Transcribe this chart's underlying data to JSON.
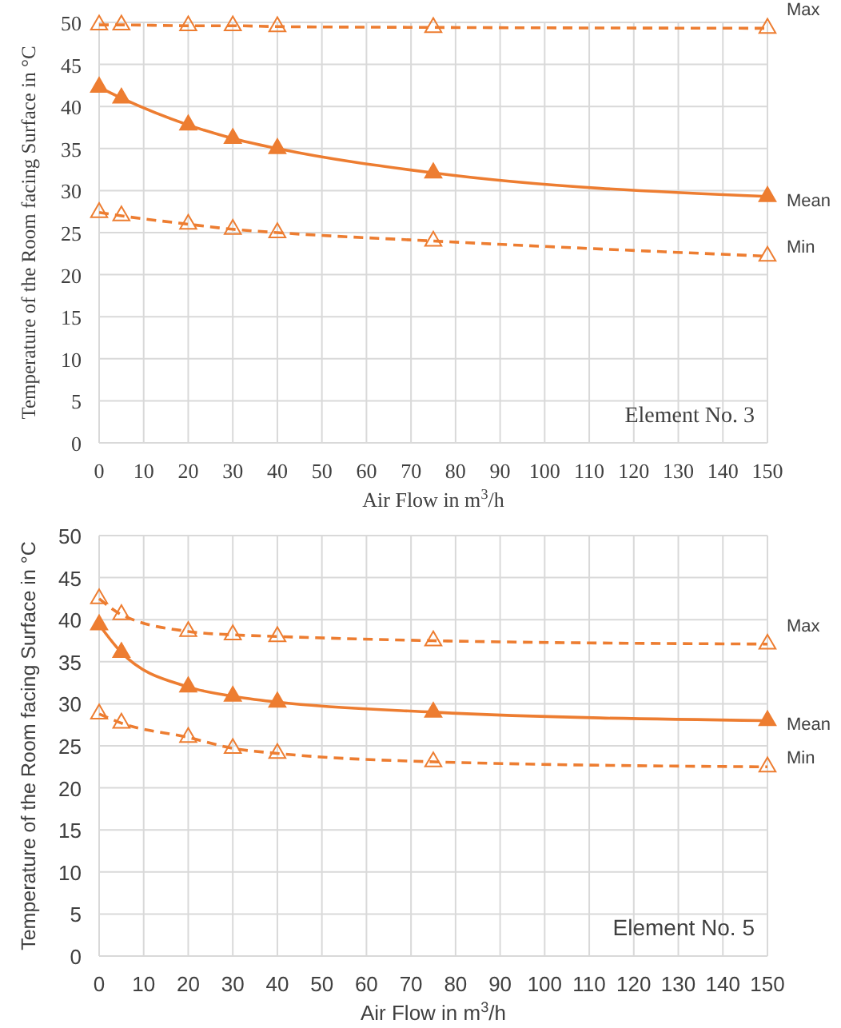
{
  "chart_data": [
    {
      "type": "line",
      "xlabel": "Air Flow in m$^{3}$/h",
      "ylabel": "Temperature of the Room facing Surface in °C",
      "annotations": [
        "Element No. 3"
      ],
      "x": [
        0,
        5,
        20,
        30,
        40,
        75,
        150
      ],
      "xlim": [
        0,
        150
      ],
      "xticks": [
        0,
        10,
        20,
        30,
        40,
        50,
        60,
        70,
        80,
        90,
        100,
        110,
        120,
        130,
        140,
        150
      ],
      "ylim": [
        0,
        50
      ],
      "yticks": [
        0,
        5,
        10,
        15,
        20,
        25,
        30,
        35,
        40,
        45,
        50
      ],
      "grid": true,
      "legend": false,
      "marker": "triangle",
      "series": [
        {
          "name": "Max",
          "color": "#ed7d31",
          "line_style": "dashed",
          "values": [
            49.7,
            49.7,
            49.6,
            49.6,
            49.5,
            49.4,
            49.3
          ]
        },
        {
          "name": "Mean",
          "color": "#ed7d31",
          "line_style": "solid",
          "values": [
            42.3,
            41,
            37.8,
            36.2,
            35,
            32.1,
            29.3
          ]
        },
        {
          "name": "Min",
          "color": "#ed7d31",
          "line_style": "dashed",
          "values": [
            27.4,
            27,
            26,
            25.4,
            25,
            24,
            22.2
          ]
        }
      ]
    },
    {
      "type": "line",
      "xlabel": "Air Flow in m$^{3}$/h",
      "ylabel": "Temperature of the Room facing Surface in °C",
      "annotations": [
        "Element No. 5"
      ],
      "x": [
        0,
        5,
        20,
        30,
        40,
        75,
        150
      ],
      "xlim": [
        0,
        150
      ],
      "xticks": [
        0,
        10,
        20,
        30,
        40,
        50,
        60,
        70,
        80,
        90,
        100,
        110,
        120,
        130,
        140,
        150
      ],
      "ylim": [
        0,
        50
      ],
      "yticks": [
        0,
        5,
        10,
        15,
        20,
        25,
        30,
        35,
        40,
        45,
        50
      ],
      "grid": true,
      "legend": false,
      "marker": "triangle",
      "series": [
        {
          "name": "Max",
          "color": "#ed7d31",
          "line_style": "dashed",
          "values": [
            42.5,
            40.6,
            38.6,
            38.2,
            38,
            37.5,
            37.1
          ]
        },
        {
          "name": "Mean",
          "color": "#ed7d31",
          "line_style": "solid",
          "values": [
            39.4,
            36.1,
            32,
            30.9,
            30.2,
            29,
            28
          ]
        },
        {
          "name": "Min",
          "color": "#ed7d31",
          "line_style": "dashed",
          "values": [
            28.8,
            27.7,
            26,
            24.7,
            24.1,
            23.1,
            22.5
          ]
        }
      ]
    }
  ]
}
